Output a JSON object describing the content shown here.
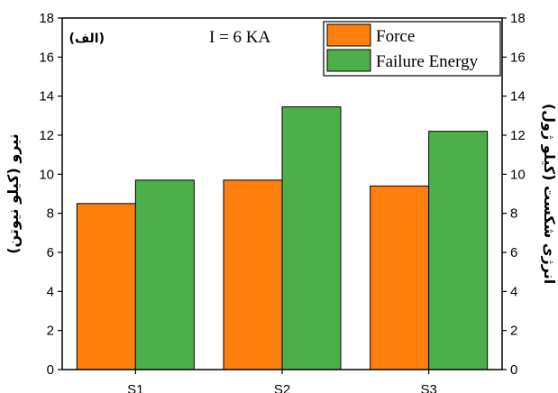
{
  "chart_data": {
    "type": "bar",
    "categories": [
      "S1",
      "S2",
      "S3"
    ],
    "series": [
      {
        "name": "Force",
        "values": [
          8.5,
          9.7,
          9.4
        ],
        "color": "#ff7f0e",
        "edge": "#000000"
      },
      {
        "name": "Failure Energy",
        "values": [
          9.7,
          13.45,
          12.2
        ],
        "color": "#4daf4a",
        "edge": "#000000"
      }
    ],
    "ylabel_left": "نیرو (کیلو نیوتن)",
    "ylabel_right": "انرژی شکست (کیلو ژول)",
    "panel_label": "(الف)",
    "annotation": "I = 6 KA",
    "ylim": [
      0,
      18
    ],
    "yticks": [
      0,
      2,
      4,
      6,
      8,
      10,
      12,
      14,
      16,
      18
    ],
    "legend_position": "top-right",
    "grid": false
  }
}
